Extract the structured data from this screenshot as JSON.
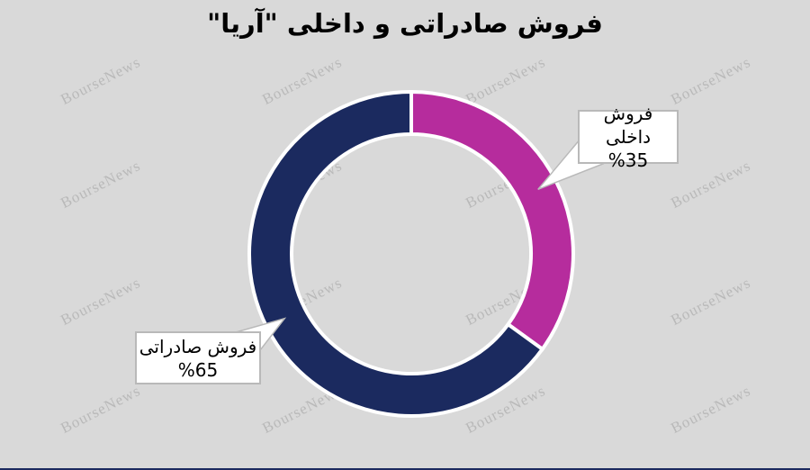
{
  "watermark": {
    "text": "BourseNews"
  },
  "chart_data": {
    "type": "pie",
    "variant": "donut",
    "title": "فروش صادراتی و داخلی \"آریا\"",
    "start_angle_deg": 0,
    "direction": "clockwise",
    "donut_hole_ratio": 0.74,
    "slice_border_color": "#ffffff",
    "background_color": "#d9d9d9",
    "legend_position": "callouts",
    "slices": [
      {
        "label": "فروش داخلی",
        "value": 35,
        "display": "%35",
        "color": "#b62c9d"
      },
      {
        "label": "فروش صادراتی",
        "value": 65,
        "display": "%65",
        "color": "#1b2a5f"
      }
    ]
  }
}
